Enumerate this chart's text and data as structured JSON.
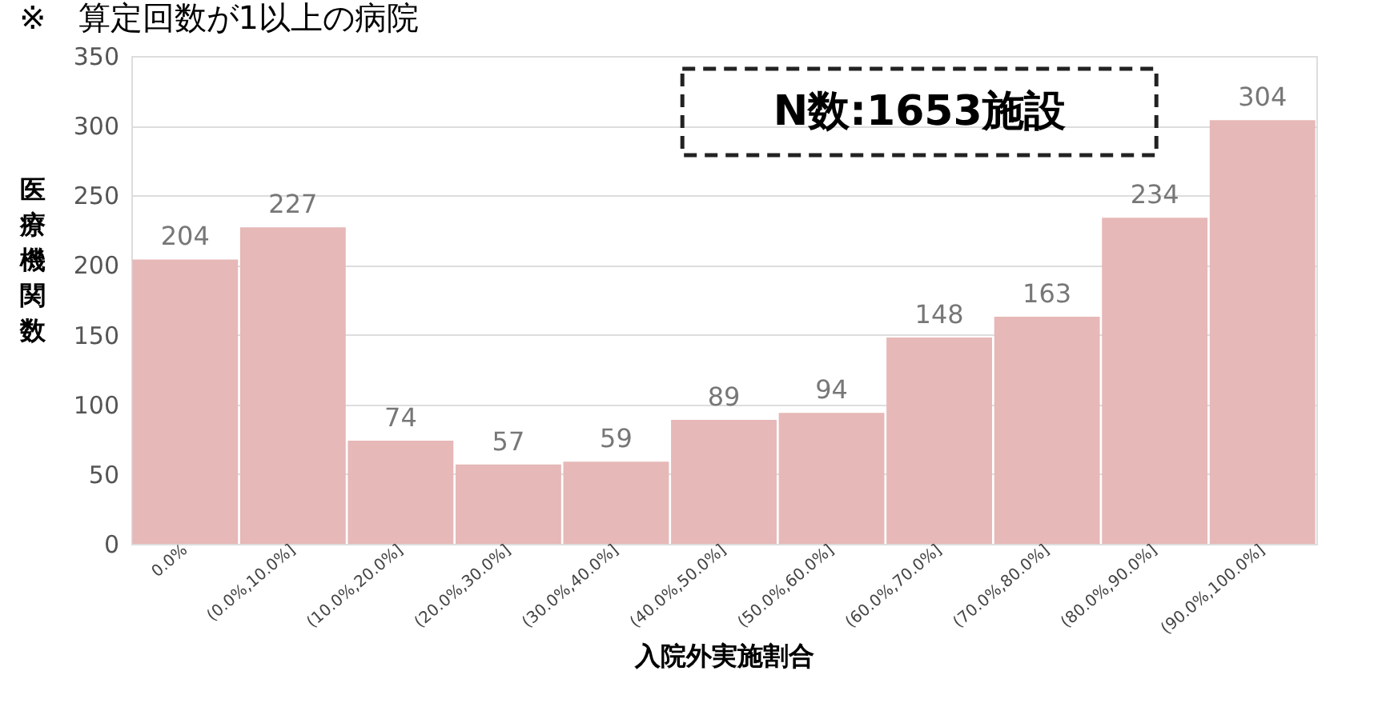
{
  "chart_data": {
    "type": "bar",
    "title": "※　算定回数が1以上の病院",
    "xlabel": "入院外実施割合",
    "ylabel": "医療機関数",
    "categories": [
      "0.0%",
      "(0.0%,10.0%]",
      "(10.0%,20.0%]",
      "(20.0%,30.0%]",
      "(30.0%,40.0%]",
      "(40.0%,50.0%]",
      "(50.0%,60.0%]",
      "(60.0%,70.0%]",
      "(70.0%,80.0%]",
      "(80.0%,90.0%]",
      "(90.0%,100.0%]"
    ],
    "values": [
      204,
      227,
      74,
      57,
      59,
      89,
      94,
      148,
      163,
      234,
      304
    ],
    "color": "#e6b8b7",
    "ylim": [
      0,
      350
    ],
    "yticks": [
      0,
      50,
      100,
      150,
      200,
      250,
      300,
      350
    ],
    "grid": "y",
    "data_labels": true,
    "annotations": [
      "N数:1653施設"
    ]
  }
}
